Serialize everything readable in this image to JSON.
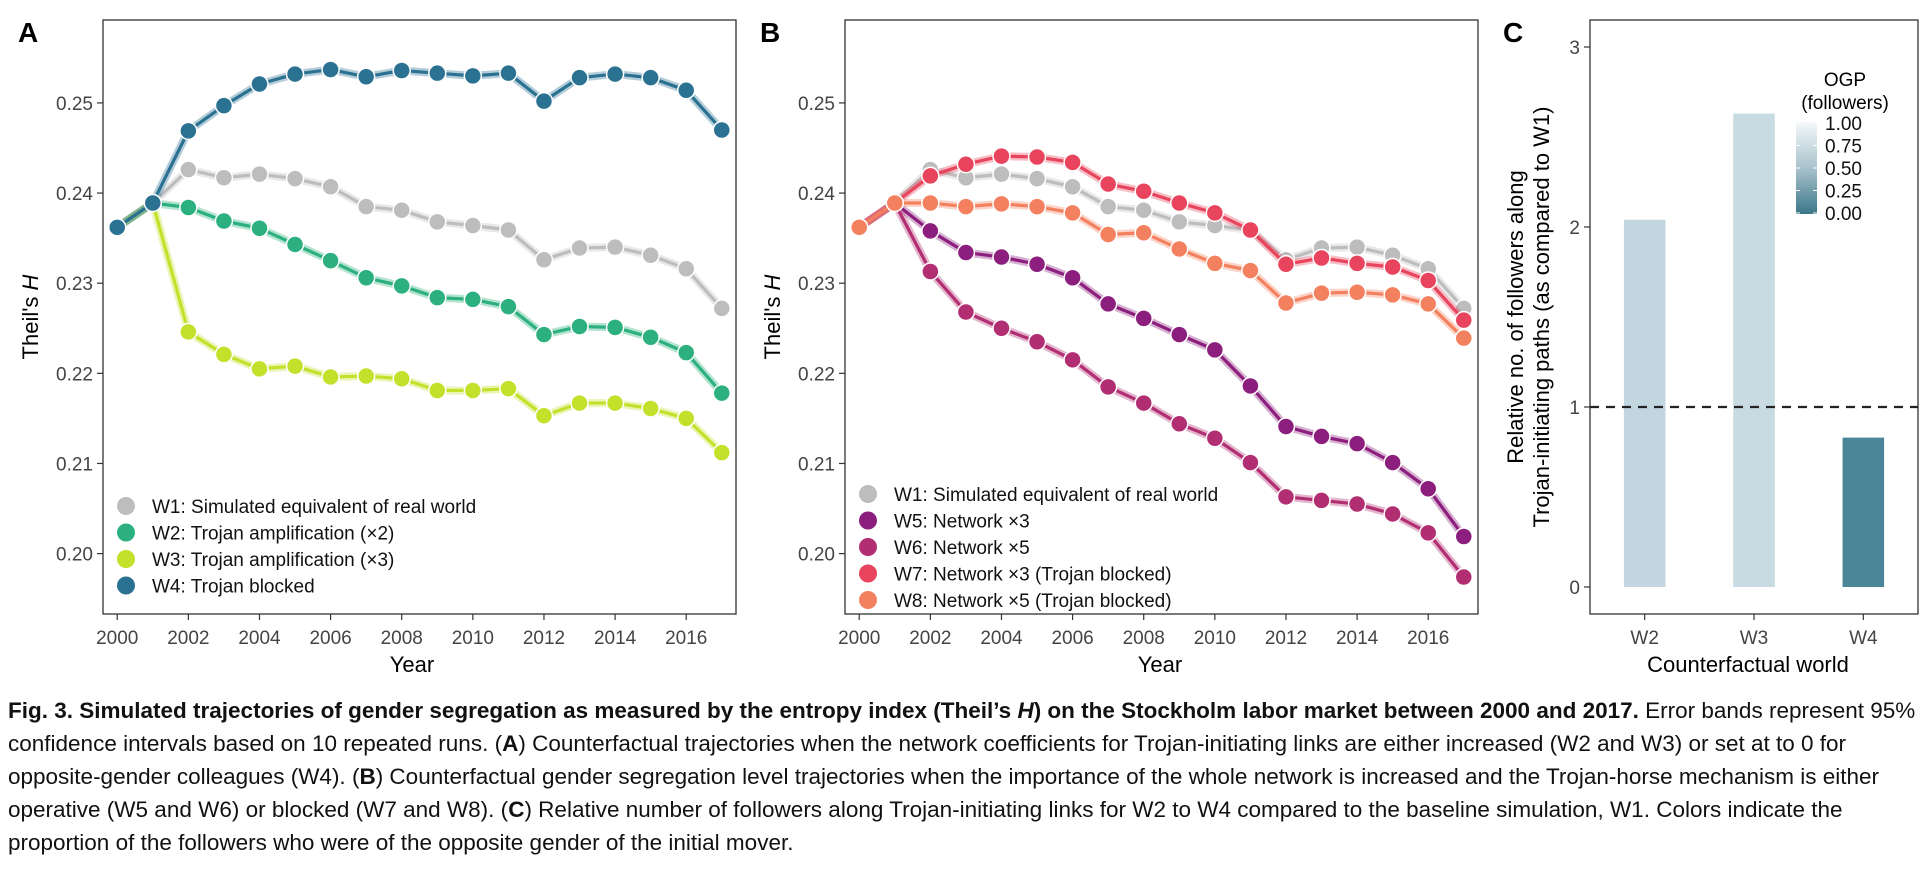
{
  "panels": {
    "A": {
      "letter": "A",
      "ylabel": "Theil's",
      "ylabel_var": "H",
      "xlabel": "Year",
      "xticks": [
        "2000",
        "2002",
        "2004",
        "2006",
        "2008",
        "2010",
        "2012",
        "2014",
        "2016"
      ],
      "yticks": [
        "0.20",
        "0.21",
        "0.22",
        "0.23",
        "0.24",
        "0.25"
      ]
    },
    "B": {
      "letter": "B",
      "ylabel": "Theil's",
      "ylabel_var": "H",
      "xlabel": "Year",
      "xticks": [
        "2000",
        "2002",
        "2004",
        "2006",
        "2008",
        "2010",
        "2012",
        "2014",
        "2016"
      ],
      "yticks": [
        "0.20",
        "0.21",
        "0.22",
        "0.23",
        "0.24",
        "0.25"
      ]
    },
    "C": {
      "letter": "C",
      "ylabel_line1": "Relative no. of followers along",
      "ylabel_line2": "Trojan-initiating paths (as compared to W1)",
      "xlabel": "Counterfactual world",
      "yticks": [
        "0",
        "1",
        "2",
        "3"
      ],
      "legend_title_1": "OGP",
      "legend_title_2": "(followers)",
      "legend_ticks": [
        "1.00",
        "0.75",
        "0.50",
        "0.25",
        "0.00"
      ]
    }
  },
  "chart_data": [
    {
      "panel": "A",
      "type": "line",
      "xlabel": "Year",
      "ylabel": "Theil's H",
      "xlim": [
        1999.6,
        2017.4
      ],
      "ylim": [
        0.1933,
        0.2592
      ],
      "legend_position": "bottom-left",
      "x": [
        2000,
        2001,
        2002,
        2003,
        2004,
        2005,
        2006,
        2007,
        2008,
        2009,
        2010,
        2011,
        2012,
        2013,
        2014,
        2015,
        2016,
        2017
      ],
      "series": [
        {
          "name": "W1: Simulated equivalent of real world",
          "color": "#bdbdbd",
          "values": [
            0.2362,
            0.2389,
            0.2426,
            0.2417,
            0.2421,
            0.2416,
            0.2407,
            0.2385,
            0.2381,
            0.2368,
            0.2364,
            0.2359,
            0.2326,
            0.2339,
            0.234,
            0.2331,
            0.2316,
            0.2272
          ]
        },
        {
          "name": "W2: Trojan amplification (×2)",
          "color": "#2cb07f",
          "values": [
            0.2362,
            0.2389,
            0.2384,
            0.2369,
            0.2361,
            0.2343,
            0.2325,
            0.2306,
            0.2297,
            0.2284,
            0.2282,
            0.2274,
            0.2243,
            0.2252,
            0.2251,
            0.224,
            0.2223,
            0.2178
          ]
        },
        {
          "name": "W3: Trojan amplification (×3)",
          "color": "#c3e02a",
          "values": [
            0.2362,
            0.2389,
            0.2246,
            0.2221,
            0.2205,
            0.2208,
            0.2196,
            0.2197,
            0.2194,
            0.2181,
            0.2181,
            0.2183,
            0.2153,
            0.2167,
            0.2167,
            0.2161,
            0.215,
            0.2112
          ]
        },
        {
          "name": "W4: Trojan blocked",
          "color": "#2b7191",
          "values": [
            0.2362,
            0.2389,
            0.2469,
            0.2497,
            0.2521,
            0.2532,
            0.2537,
            0.2529,
            0.2536,
            0.2533,
            0.253,
            0.2533,
            0.2502,
            0.2528,
            0.2532,
            0.2528,
            0.2514,
            0.247
          ]
        }
      ]
    },
    {
      "panel": "B",
      "type": "line",
      "xlabel": "Year",
      "ylabel": "Theil's H",
      "xlim": [
        1999.6,
        2017.4
      ],
      "ylim": [
        0.1933,
        0.2592
      ],
      "legend_position": "bottom-left",
      "x": [
        2000,
        2001,
        2002,
        2003,
        2004,
        2005,
        2006,
        2007,
        2008,
        2009,
        2010,
        2011,
        2012,
        2013,
        2014,
        2015,
        2016,
        2017
      ],
      "series": [
        {
          "name": "W1: Simulated equivalent of real world",
          "color": "#bdbdbd",
          "values": [
            0.2362,
            0.2389,
            0.2426,
            0.2417,
            0.2421,
            0.2416,
            0.2407,
            0.2385,
            0.2381,
            0.2368,
            0.2364,
            0.2359,
            0.2326,
            0.2339,
            0.234,
            0.2331,
            0.2316,
            0.2272
          ]
        },
        {
          "name": "W5: Network ×3",
          "color": "#8c1f7d",
          "values": [
            0.2362,
            0.2389,
            0.2358,
            0.2334,
            0.2329,
            0.2321,
            0.2306,
            0.2277,
            0.2261,
            0.2243,
            0.2226,
            0.2186,
            0.2141,
            0.213,
            0.2122,
            0.2101,
            0.2072,
            0.2019
          ]
        },
        {
          "name": "W6: Network ×5",
          "color": "#b22e72",
          "values": [
            0.2362,
            0.2389,
            0.2313,
            0.2268,
            0.225,
            0.2235,
            0.2215,
            0.2185,
            0.2167,
            0.2144,
            0.2128,
            0.2101,
            0.2063,
            0.2059,
            0.2055,
            0.2044,
            0.2023,
            0.1974
          ]
        },
        {
          "name": "W7: Network ×3 (Trojan blocked)",
          "color": "#e8445d",
          "values": [
            0.2362,
            0.2389,
            0.2419,
            0.2432,
            0.2441,
            0.244,
            0.2434,
            0.241,
            0.2402,
            0.2389,
            0.2378,
            0.2359,
            0.2321,
            0.2328,
            0.2322,
            0.2318,
            0.2303,
            0.2259
          ]
        },
        {
          "name": "W8: Network ×5 (Trojan blocked)",
          "color": "#f3805e",
          "values": [
            0.2362,
            0.2389,
            0.2389,
            0.2385,
            0.2388,
            0.2385,
            0.2378,
            0.2354,
            0.2356,
            0.2338,
            0.2322,
            0.2314,
            0.2278,
            0.2289,
            0.229,
            0.2287,
            0.2277,
            0.2239
          ]
        }
      ]
    },
    {
      "panel": "C",
      "type": "bar",
      "xlabel": "Counterfactual world",
      "ylabel": "Relative no. of followers along Trojan-initiating paths (as compared to W1)",
      "categories": [
        "W2",
        "W3",
        "W4"
      ],
      "values": [
        2.04,
        2.63,
        0.83
      ],
      "ogp_followers": [
        0.75,
        0.8,
        0.1
      ],
      "bar_colors": [
        "#c1d6de",
        "#c8dbe2",
        "#4a8598"
      ],
      "ylim": [
        -0.15,
        3.15
      ],
      "reference_line": 1,
      "legend_position": "top-right",
      "legend_range": [
        0,
        1
      ]
    }
  ],
  "caption": {
    "lead": "Fig. 3. Simulated trajectories of gender segregation as measured by the entropy index (Theil’s ",
    "lead_var": "H",
    "lead_end": ") on the Stockholm labor market between 2000 and 2017.",
    "s1": " Error bands represent 95% confidence intervals based on 10 repeated runs. (",
    "A": "A",
    "s2": ") Counterfactual trajectories when the network coefficients for Trojan-initiating links are either increased (W2 and W3) or set at to 0 for opposite-gender colleagues (W4). (",
    "B": "B",
    "s3": ") Counterfactual gender segregation level trajectories when the importance of the whole network is increased and the Trojan-horse mechanism is either operative (W5 and W6) or blocked (W7 and W8). (",
    "C": "C",
    "s4": ") Relative number of followers along Trojan-initiating links for W2 to W4 compared to the baseline simulation, W1. Colors indicate the proportion of the followers who were of the opposite gender of the initial mover."
  }
}
